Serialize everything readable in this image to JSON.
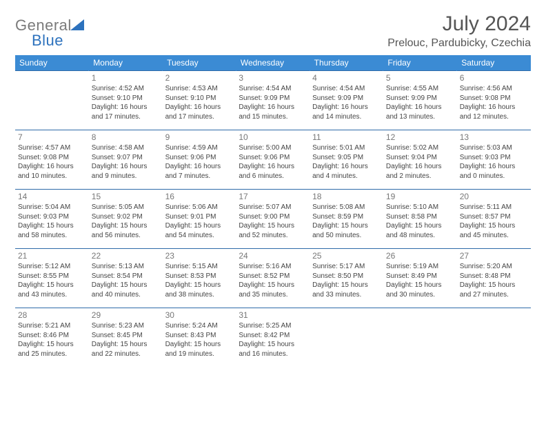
{
  "colors": {
    "header_bg": "#3b8bd4",
    "header_text": "#ffffff",
    "line": "#2d6aa8",
    "body_text": "#444444",
    "daynum_text": "#777777",
    "logo_gray": "#7a7a7a",
    "logo_blue": "#2d72bd",
    "title_color": "#555555",
    "background": "#ffffff"
  },
  "logo": {
    "part1": "General",
    "part2": "Blue"
  },
  "title": {
    "month": "July 2024",
    "location": "Prelouc, Pardubicky, Czechia"
  },
  "day_headers": [
    "Sunday",
    "Monday",
    "Tuesday",
    "Wednesday",
    "Thursday",
    "Friday",
    "Saturday"
  ],
  "weeks": [
    [
      null,
      {
        "n": "1",
        "sr": "Sunrise: 4:52 AM",
        "ss": "Sunset: 9:10 PM",
        "dl": "Daylight: 16 hours and 17 minutes."
      },
      {
        "n": "2",
        "sr": "Sunrise: 4:53 AM",
        "ss": "Sunset: 9:10 PM",
        "dl": "Daylight: 16 hours and 17 minutes."
      },
      {
        "n": "3",
        "sr": "Sunrise: 4:54 AM",
        "ss": "Sunset: 9:09 PM",
        "dl": "Daylight: 16 hours and 15 minutes."
      },
      {
        "n": "4",
        "sr": "Sunrise: 4:54 AM",
        "ss": "Sunset: 9:09 PM",
        "dl": "Daylight: 16 hours and 14 minutes."
      },
      {
        "n": "5",
        "sr": "Sunrise: 4:55 AM",
        "ss": "Sunset: 9:09 PM",
        "dl": "Daylight: 16 hours and 13 minutes."
      },
      {
        "n": "6",
        "sr": "Sunrise: 4:56 AM",
        "ss": "Sunset: 9:08 PM",
        "dl": "Daylight: 16 hours and 12 minutes."
      }
    ],
    [
      {
        "n": "7",
        "sr": "Sunrise: 4:57 AM",
        "ss": "Sunset: 9:08 PM",
        "dl": "Daylight: 16 hours and 10 minutes."
      },
      {
        "n": "8",
        "sr": "Sunrise: 4:58 AM",
        "ss": "Sunset: 9:07 PM",
        "dl": "Daylight: 16 hours and 9 minutes."
      },
      {
        "n": "9",
        "sr": "Sunrise: 4:59 AM",
        "ss": "Sunset: 9:06 PM",
        "dl": "Daylight: 16 hours and 7 minutes."
      },
      {
        "n": "10",
        "sr": "Sunrise: 5:00 AM",
        "ss": "Sunset: 9:06 PM",
        "dl": "Daylight: 16 hours and 6 minutes."
      },
      {
        "n": "11",
        "sr": "Sunrise: 5:01 AM",
        "ss": "Sunset: 9:05 PM",
        "dl": "Daylight: 16 hours and 4 minutes."
      },
      {
        "n": "12",
        "sr": "Sunrise: 5:02 AM",
        "ss": "Sunset: 9:04 PM",
        "dl": "Daylight: 16 hours and 2 minutes."
      },
      {
        "n": "13",
        "sr": "Sunrise: 5:03 AM",
        "ss": "Sunset: 9:03 PM",
        "dl": "Daylight: 16 hours and 0 minutes."
      }
    ],
    [
      {
        "n": "14",
        "sr": "Sunrise: 5:04 AM",
        "ss": "Sunset: 9:03 PM",
        "dl": "Daylight: 15 hours and 58 minutes."
      },
      {
        "n": "15",
        "sr": "Sunrise: 5:05 AM",
        "ss": "Sunset: 9:02 PM",
        "dl": "Daylight: 15 hours and 56 minutes."
      },
      {
        "n": "16",
        "sr": "Sunrise: 5:06 AM",
        "ss": "Sunset: 9:01 PM",
        "dl": "Daylight: 15 hours and 54 minutes."
      },
      {
        "n": "17",
        "sr": "Sunrise: 5:07 AM",
        "ss": "Sunset: 9:00 PM",
        "dl": "Daylight: 15 hours and 52 minutes."
      },
      {
        "n": "18",
        "sr": "Sunrise: 5:08 AM",
        "ss": "Sunset: 8:59 PM",
        "dl": "Daylight: 15 hours and 50 minutes."
      },
      {
        "n": "19",
        "sr": "Sunrise: 5:10 AM",
        "ss": "Sunset: 8:58 PM",
        "dl": "Daylight: 15 hours and 48 minutes."
      },
      {
        "n": "20",
        "sr": "Sunrise: 5:11 AM",
        "ss": "Sunset: 8:57 PM",
        "dl": "Daylight: 15 hours and 45 minutes."
      }
    ],
    [
      {
        "n": "21",
        "sr": "Sunrise: 5:12 AM",
        "ss": "Sunset: 8:55 PM",
        "dl": "Daylight: 15 hours and 43 minutes."
      },
      {
        "n": "22",
        "sr": "Sunrise: 5:13 AM",
        "ss": "Sunset: 8:54 PM",
        "dl": "Daylight: 15 hours and 40 minutes."
      },
      {
        "n": "23",
        "sr": "Sunrise: 5:15 AM",
        "ss": "Sunset: 8:53 PM",
        "dl": "Daylight: 15 hours and 38 minutes."
      },
      {
        "n": "24",
        "sr": "Sunrise: 5:16 AM",
        "ss": "Sunset: 8:52 PM",
        "dl": "Daylight: 15 hours and 35 minutes."
      },
      {
        "n": "25",
        "sr": "Sunrise: 5:17 AM",
        "ss": "Sunset: 8:50 PM",
        "dl": "Daylight: 15 hours and 33 minutes."
      },
      {
        "n": "26",
        "sr": "Sunrise: 5:19 AM",
        "ss": "Sunset: 8:49 PM",
        "dl": "Daylight: 15 hours and 30 minutes."
      },
      {
        "n": "27",
        "sr": "Sunrise: 5:20 AM",
        "ss": "Sunset: 8:48 PM",
        "dl": "Daylight: 15 hours and 27 minutes."
      }
    ],
    [
      {
        "n": "28",
        "sr": "Sunrise: 5:21 AM",
        "ss": "Sunset: 8:46 PM",
        "dl": "Daylight: 15 hours and 25 minutes."
      },
      {
        "n": "29",
        "sr": "Sunrise: 5:23 AM",
        "ss": "Sunset: 8:45 PM",
        "dl": "Daylight: 15 hours and 22 minutes."
      },
      {
        "n": "30",
        "sr": "Sunrise: 5:24 AM",
        "ss": "Sunset: 8:43 PM",
        "dl": "Daylight: 15 hours and 19 minutes."
      },
      {
        "n": "31",
        "sr": "Sunrise: 5:25 AM",
        "ss": "Sunset: 8:42 PM",
        "dl": "Daylight: 15 hours and 16 minutes."
      },
      null,
      null,
      null
    ]
  ]
}
